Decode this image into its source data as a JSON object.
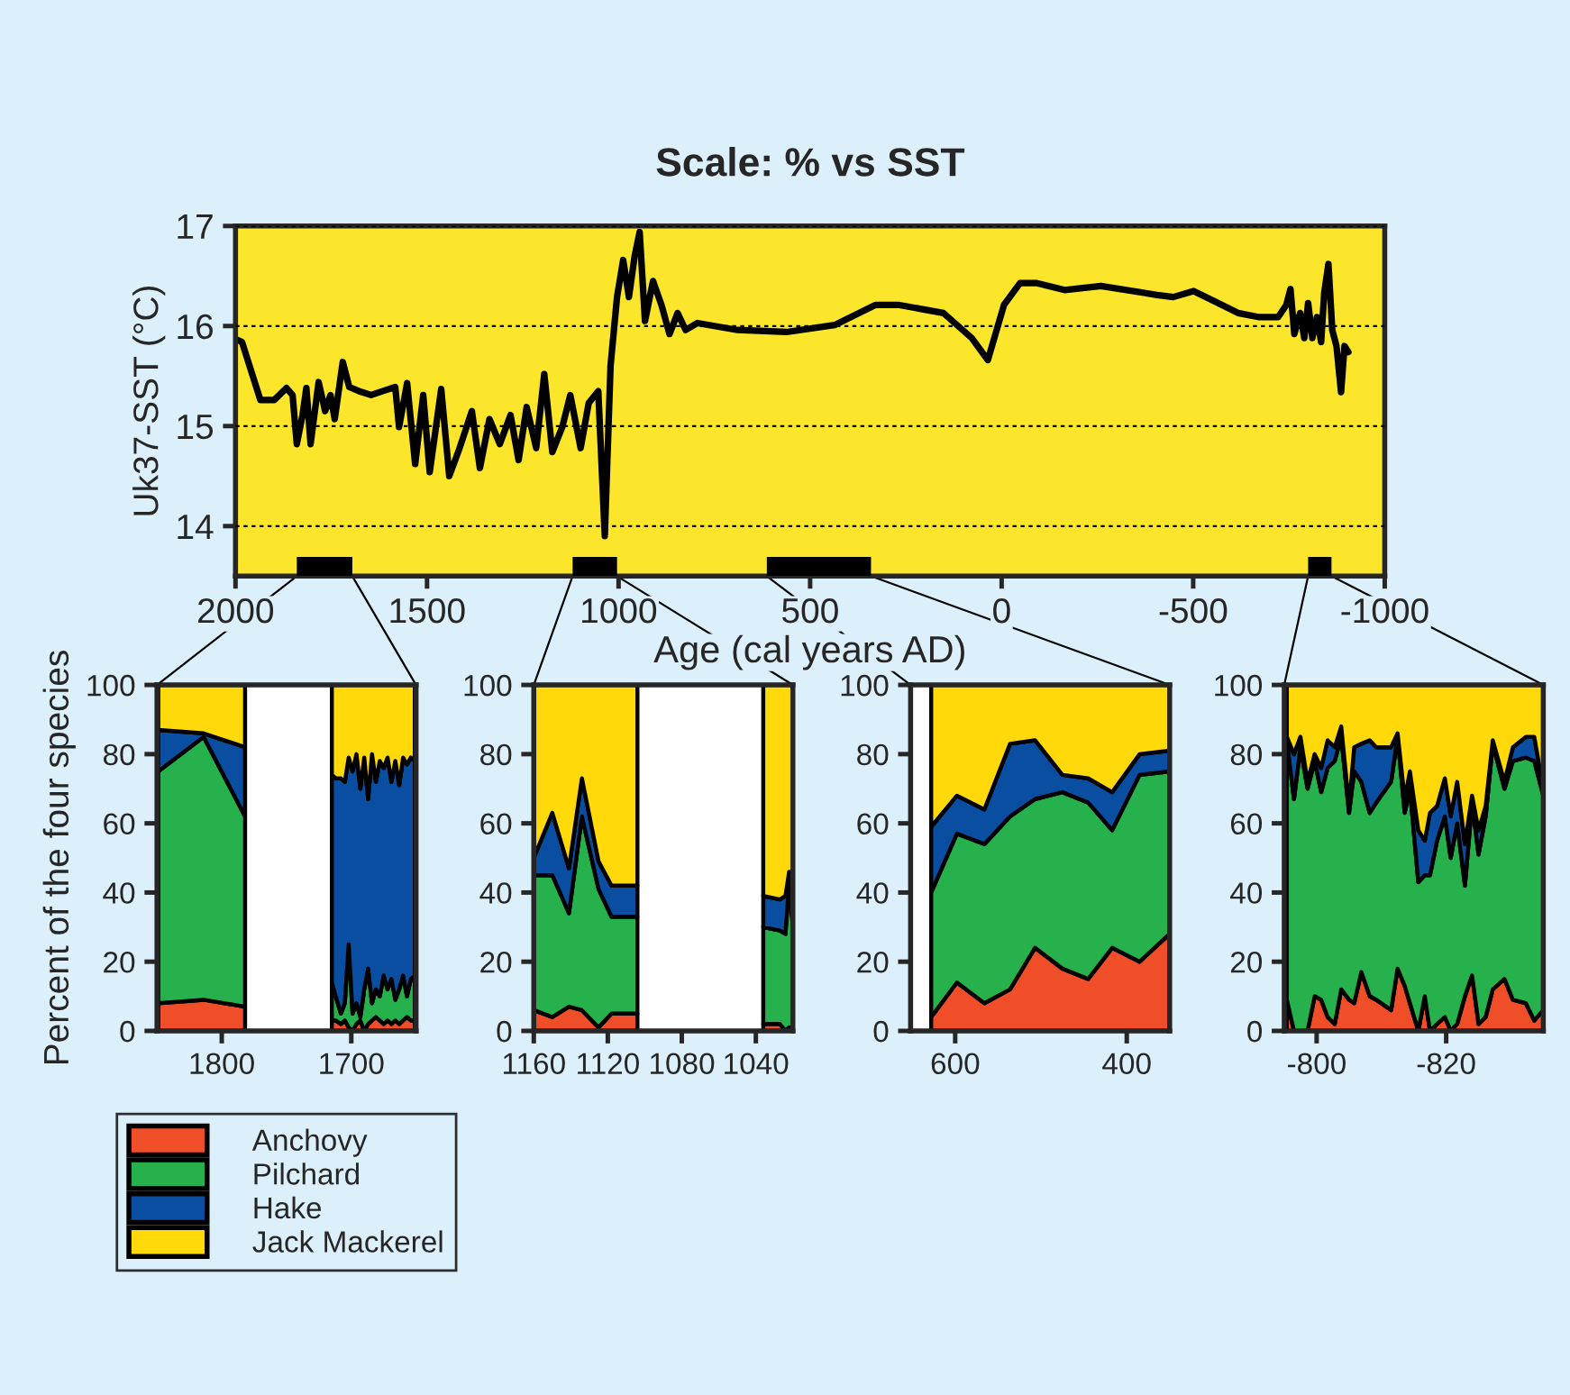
{
  "chart_data": [
    {
      "type": "line",
      "title": "Scale: % vs SST",
      "xlabel": "Age (cal years AD)",
      "ylabel": "Uk37-SST (°C)",
      "xlim": [
        2000,
        -1000
      ],
      "xticks": [
        2000,
        1500,
        1000,
        500,
        0,
        -500,
        -1000
      ],
      "ylim": [
        13.5,
        17
      ],
      "yticks": [
        14,
        15,
        16,
        17
      ],
      "grid": "y",
      "marker": "none",
      "line_style": "solid",
      "x": [
        2000,
        1983,
        1935,
        1899,
        1867,
        1851,
        1840,
        1825,
        1815,
        1804,
        1783,
        1766,
        1752,
        1741,
        1720,
        1703,
        1678,
        1646,
        1615,
        1583,
        1573,
        1552,
        1531,
        1510,
        1493,
        1463,
        1442,
        1415,
        1383,
        1362,
        1337,
        1310,
        1282,
        1261,
        1240,
        1215,
        1194,
        1173,
        1147,
        1126,
        1099,
        1078,
        1053,
        1036,
        1021,
        1004,
        988,
        973,
        958,
        945,
        931,
        910,
        888,
        867,
        846,
        825,
        794,
        689,
        562,
        436,
        330,
        267,
        152,
        78,
        36,
        -6,
        -48,
        -90,
        -164,
        -259,
        -406,
        -448,
        -501,
        -554,
        -617,
        -670,
        -722,
        -743,
        -754,
        -764,
        -779,
        -790,
        -800,
        -811,
        -823,
        -834,
        -842,
        -853,
        -863,
        -874,
        -886,
        -895,
        -905
      ],
      "series": [
        {
          "color": "#000000",
          "values": [
            15.87,
            15.84,
            15.26,
            15.26,
            15.38,
            15.31,
            14.82,
            15.11,
            15.38,
            14.82,
            15.44,
            15.15,
            15.31,
            15.07,
            15.64,
            15.39,
            15.35,
            15.31,
            15.35,
            15.39,
            14.99,
            15.43,
            14.62,
            15.31,
            14.54,
            15.37,
            14.5,
            14.78,
            15.15,
            14.58,
            15.07,
            14.82,
            15.11,
            14.66,
            15.19,
            14.78,
            15.52,
            14.74,
            14.99,
            15.31,
            14.78,
            15.23,
            15.35,
            13.9,
            15.6,
            16.29,
            16.66,
            16.29,
            16.7,
            16.94,
            16.05,
            16.45,
            16.21,
            15.92,
            16.13,
            15.96,
            16.03,
            15.96,
            15.94,
            16.01,
            16.21,
            16.21,
            16.13,
            15.88,
            15.66,
            16.21,
            16.43,
            16.43,
            16.36,
            16.4,
            16.31,
            16.29,
            16.35,
            16.25,
            16.13,
            16.09,
            16.09,
            16.21,
            16.37,
            15.92,
            16.13,
            15.88,
            16.23,
            15.88,
            16.09,
            15.84,
            16.33,
            16.62,
            15.96,
            15.8,
            15.34,
            15.8,
            15.74
          ]
        }
      ],
      "bands": [
        {
          "axis": "x",
          "from": 1840,
          "to": 1695,
          "color": "#000000"
        },
        {
          "axis": "x",
          "from": 1120,
          "to": 1004,
          "color": "#000000"
        },
        {
          "axis": "x",
          "from": 613,
          "to": 341,
          "color": "#000000"
        },
        {
          "axis": "x",
          "from": -800,
          "to": -861,
          "color": "#000000"
        }
      ]
    },
    {
      "type": "area",
      "stacked": true,
      "ylabel": "Percent of the four species",
      "xlim": [
        1850,
        1650
      ],
      "xticks": [
        1800,
        1700
      ],
      "ylim": [
        0,
        100
      ],
      "yticks": [
        0,
        20,
        40,
        60,
        80,
        100
      ],
      "legend": "bottom",
      "x": [
        1849,
        1814,
        1782,
        1750,
        1715,
        1712,
        1708,
        1705,
        1702,
        1699,
        1696,
        1693,
        1690,
        1687,
        1684,
        1681,
        1678,
        1675,
        1672,
        1669,
        1666,
        1663,
        1660,
        1657,
        1654,
        1651
      ],
      "series": [
        {
          "name": "Anchovy",
          "color": "#f04e29",
          "values": [
            8,
            9,
            7,
            null,
            3,
            3,
            2,
            3,
            1,
            0,
            2,
            3,
            0,
            2,
            3,
            4,
            3,
            2,
            3,
            2,
            3,
            2,
            3,
            4,
            3,
            3
          ]
        },
        {
          "name": "Pilchard",
          "color": "#27b14c",
          "values": [
            67,
            76,
            55,
            null,
            11,
            7,
            3,
            5,
            24,
            5,
            6,
            1,
            12,
            16,
            5,
            8,
            7,
            14,
            9,
            13,
            6,
            10,
            13,
            6,
            12,
            13
          ]
        },
        {
          "name": "Hake",
          "color": "#0a4ea2",
          "values": [
            12,
            1,
            20,
            null,
            60,
            63,
            68,
            64,
            54,
            70,
            72,
            66,
            67,
            49,
            72,
            60,
            68,
            60,
            67,
            57,
            69,
            59,
            63,
            67,
            64,
            62
          ]
        },
        {
          "name": "Jack Mackerel",
          "color": "#ffd90a",
          "values": [
            13,
            14,
            18,
            null,
            26,
            27,
            27,
            28,
            21,
            25,
            20,
            30,
            21,
            33,
            20,
            28,
            22,
            24,
            21,
            28,
            22,
            29,
            21,
            23,
            21,
            22
          ]
        }
      ]
    },
    {
      "type": "area",
      "stacked": true,
      "xlim": [
        1160,
        1020
      ],
      "xticks": [
        1160,
        1120,
        1080,
        1040
      ],
      "ylim": [
        0,
        100
      ],
      "yticks": [
        0,
        20,
        40,
        60,
        80,
        100
      ],
      "x": [
        1160,
        1150,
        1141,
        1134,
        1125,
        1118,
        1104,
        1070,
        1036,
        1027,
        1024,
        1022,
        1020
      ],
      "series": [
        {
          "color": "#f04e29",
          "values": [
            6,
            4,
            7,
            6,
            1,
            5,
            5,
            null,
            2,
            2,
            0,
            1,
            0
          ]
        },
        {
          "color": "#27b14c",
          "values": [
            39,
            41,
            27,
            56,
            40,
            28,
            28,
            null,
            28,
            27,
            28,
            42,
            30
          ]
        },
        {
          "color": "#0a4ea2",
          "values": [
            5,
            18,
            13,
            11,
            8,
            9,
            9,
            null,
            9,
            9,
            11,
            3,
            8
          ]
        },
        {
          "color": "#ffd90a",
          "values": [
            50,
            37,
            53,
            27,
            51,
            58,
            58,
            null,
            61,
            62,
            61,
            54,
            62
          ]
        }
      ]
    },
    {
      "type": "area",
      "stacked": true,
      "xlim": [
        652,
        350
      ],
      "xticks": [
        600,
        400
      ],
      "ylim": [
        0,
        100
      ],
      "yticks": [
        0,
        20,
        40,
        60,
        80,
        100
      ],
      "x": [
        628,
        598,
        566,
        536,
        507,
        475,
        445,
        417,
        385,
        350
      ],
      "series": [
        {
          "color": "#f04e29",
          "values": [
            4,
            14,
            8,
            12,
            24,
            18,
            15,
            24,
            20,
            28
          ]
        },
        {
          "color": "#27b14c",
          "values": [
            36,
            43,
            46,
            50,
            43,
            51,
            51,
            34,
            54,
            47
          ]
        },
        {
          "color": "#0a4ea2",
          "values": [
            19,
            11,
            10,
            21,
            17,
            5,
            7,
            11,
            6,
            6
          ]
        },
        {
          "color": "#ffd90a",
          "values": [
            41,
            32,
            36,
            17,
            16,
            26,
            27,
            31,
            20,
            19
          ]
        }
      ]
    },
    {
      "type": "area",
      "stacked": true,
      "xlim": [
        -795,
        -835
      ],
      "xticks": [
        -800,
        -820
      ],
      "ylim": [
        0,
        100
      ],
      "yticks": [
        0,
        20,
        40,
        60,
        80,
        100
      ],
      "x": [
        -795.4,
        -796.5,
        -797.5,
        -798.6,
        -799.7,
        -800.7,
        -801.7,
        -802.8,
        -803.8,
        -805,
        -805.8,
        -806.9,
        -808.2,
        -809.2,
        -811.5,
        -812.5,
        -813.6,
        -814.4,
        -815.7,
        -816.7,
        -817.5,
        -818.6,
        -819.8,
        -820.7,
        -821.7,
        -822.9,
        -824,
        -825,
        -826.1,
        -827.2,
        -829,
        -830.3,
        -832.3,
        -833.6,
        -835
      ],
      "series": [
        {
          "color": "#f04e29",
          "values": [
            9,
            0,
            0,
            0,
            10,
            9,
            4,
            2,
            12,
            9,
            8,
            17,
            10,
            9,
            6,
            18,
            13,
            8,
            0,
            10,
            0,
            2,
            4,
            0,
            2,
            10,
            16,
            2,
            4,
            12,
            15,
            9,
            8,
            3,
            6
          ]
        },
        {
          "color": "#27b14c",
          "values": [
            75,
            67,
            82,
            70,
            68,
            60,
            72,
            76,
            73,
            54,
            67,
            55,
            53,
            57,
            66,
            67,
            50,
            62,
            43,
            35,
            45,
            53,
            58,
            50,
            58,
            32,
            50,
            49,
            58,
            71,
            55,
            69,
            71,
            75,
            62
          ]
        },
        {
          "color": "#0a4ea2",
          "values": [
            1,
            13,
            3,
            2,
            2,
            7,
            8,
            4,
            3,
            2,
            7,
            11,
            21,
            16,
            10,
            1,
            4,
            5,
            15,
            10,
            18,
            10,
            11,
            12,
            12,
            12,
            2,
            7,
            3,
            1,
            2,
            4,
            6,
            7,
            2
          ]
        },
        {
          "color": "#ffd90a",
          "values": [
            15,
            20,
            15,
            28,
            20,
            24,
            16,
            18,
            12,
            35,
            18,
            17,
            16,
            18,
            18,
            14,
            33,
            25,
            42,
            45,
            37,
            35,
            27,
            38,
            28,
            46,
            32,
            42,
            35,
            16,
            28,
            18,
            15,
            15,
            30
          ]
        }
      ]
    }
  ]
}
